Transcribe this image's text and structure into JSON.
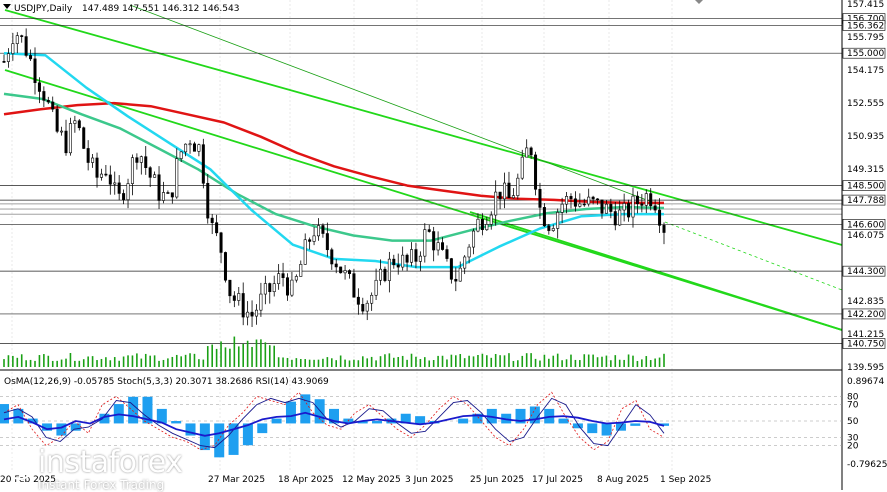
{
  "header": {
    "symbol": "USDJPY,Daily",
    "ohlc": "147.489 147.551 146.312 146.543",
    "oscillators": "OsMA(12,26,9) -0.05785   Stoch(5,3,3) 20.3071 38.2686   RSI(14) 43.9069"
  },
  "logo": {
    "brand": "instaforex",
    "tagline": "Instant Forex Trading"
  },
  "chart_data": {
    "type": "candlestick",
    "price_axis_labels": [
      "157.415",
      "156.700",
      "156.362",
      "155.795",
      "155.000",
      "154.175",
      "152.555",
      "150.935",
      "149.315",
      "148.500",
      "147.788",
      "146.600",
      "146.075",
      "144.300",
      "142.835",
      "142.200",
      "141.215",
      "140.750",
      "139.595"
    ],
    "highlighted_levels": [
      "156.700",
      "156.362",
      "155.000",
      "148.500",
      "147.788",
      "146.600",
      "144.300",
      "142.200",
      "140.750"
    ],
    "x_labels": [
      "20 Feb 2025",
      "27 Mar 2025",
      "18 Apr 2025",
      "12 May 2025",
      "3 Jun 2025",
      "25 Jun 2025",
      "17 Jul 2025",
      "8 Aug 2025",
      "1 Sep 2025"
    ],
    "close_path": [
      154.6,
      156.2,
      155.4,
      154.1,
      152.9,
      151.2,
      150.6,
      151.7,
      149.9,
      148.9,
      149.4,
      147.6,
      148.9,
      150.4,
      149.1,
      148.2,
      147.7,
      150.0,
      150.9,
      150.3,
      146.6,
      145.5,
      143.1,
      142.6,
      142.1,
      142.9,
      143.5,
      144.1,
      143.2,
      145.0,
      146.4,
      145.7,
      145.0,
      144.1,
      143.3,
      142.8,
      143.3,
      144.4,
      145.0,
      144.6,
      145.0,
      146.3,
      145.5,
      144.4,
      143.9,
      145.6,
      146.7,
      147.3,
      148.3,
      147.8,
      148.9,
      150.7,
      147.3,
      146.6,
      147.6,
      147.9,
      147.6,
      147.6,
      147.4,
      147.2,
      147.0,
      147.5,
      148.0,
      148.0,
      146.5
    ],
    "ma_red": [
      152.0,
      152.25,
      152.45,
      152.55,
      152.4,
      152.0,
      151.6,
      150.9,
      150.1,
      149.45,
      148.95,
      148.5,
      148.25,
      148.0,
      147.85,
      147.8,
      147.7,
      147.65,
      147.65
    ],
    "ma_green": [
      153.0,
      152.75,
      152.0,
      151.3,
      150.3,
      149.3,
      148.1,
      147.1,
      146.5,
      146.05,
      145.8,
      145.8,
      146.3,
      146.75,
      147.15,
      147.35,
      147.45,
      147.4
    ],
    "ma_cyan": [
      155.0,
      154.9,
      153.3,
      151.9,
      150.6,
      149.3,
      147.3,
      145.6,
      144.9,
      144.8,
      144.5,
      144.5,
      145.5,
      146.4,
      147.0,
      147.1,
      147.1
    ],
    "osc_axis_labels": [
      "0.89674",
      "80",
      "70",
      "50",
      "30",
      "20",
      "-0.79625"
    ],
    "osc_osma": [
      0.4,
      0.3,
      0.1,
      -0.15,
      -0.25,
      -0.15,
      0.0,
      0.2,
      0.4,
      0.55,
      0.55,
      0.3,
      0.05,
      -0.25,
      -0.55,
      -0.7,
      -0.65,
      -0.45,
      -0.2,
      0.1,
      0.45,
      0.6,
      0.5,
      0.3,
      0.1,
      0.05,
      0.05,
      0.1,
      0.2,
      0.15,
      0.05,
      0.0,
      0.1,
      0.2,
      0.3,
      0.2,
      0.3,
      0.35,
      0.3,
      0.1,
      -0.1,
      -0.2,
      -0.25,
      -0.15,
      -0.05,
      0.0,
      -0.05
    ],
    "osc_stoch": [
      60,
      70,
      40,
      20,
      30,
      50,
      35,
      70,
      80,
      65,
      50,
      40,
      30,
      25,
      15,
      20,
      45,
      60,
      80,
      75,
      70,
      85,
      60,
      45,
      40,
      60,
      70,
      55,
      40,
      30,
      45,
      65,
      80,
      70,
      50,
      30,
      20,
      40,
      70,
      85,
      55,
      30,
      15,
      25,
      65,
      75,
      40,
      30
    ],
    "osc_rsi": [
      52,
      55,
      48,
      40,
      42,
      50,
      47,
      55,
      58,
      56,
      52,
      48,
      40,
      36,
      32,
      35,
      40,
      45,
      52,
      55,
      56,
      60,
      55,
      50,
      47,
      50,
      52,
      50,
      48,
      46,
      48,
      52,
      56,
      57,
      55,
      52,
      50,
      52,
      55,
      56,
      54,
      50,
      47,
      48,
      50,
      49,
      44
    ]
  }
}
